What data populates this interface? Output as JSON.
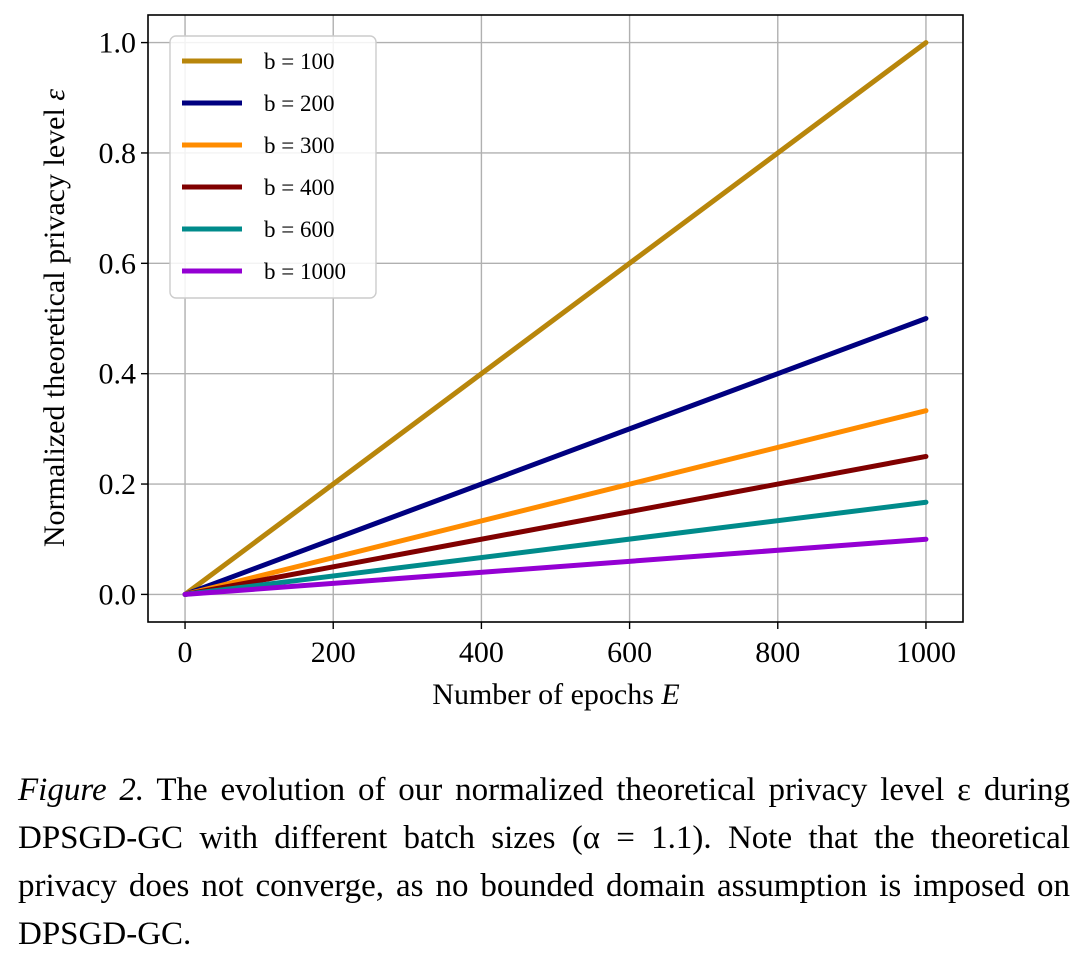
{
  "chart_data": {
    "type": "line",
    "xlabel_text": "Number of epochs ",
    "xlabel_var": "E",
    "ylabel_text": "Normalized theoretical privacy level ",
    "ylabel_var": "ε",
    "xlim": [
      -50,
      1050
    ],
    "ylim": [
      -0.05,
      1.05
    ],
    "xticks": [
      0,
      200,
      400,
      600,
      800,
      1000
    ],
    "xtick_labels": [
      "0",
      "200",
      "400",
      "600",
      "800",
      "1000"
    ],
    "yticks": [
      0.0,
      0.2,
      0.4,
      0.6,
      0.8,
      1.0
    ],
    "ytick_labels": [
      "0.0",
      "0.2",
      "0.4",
      "0.6",
      "0.8",
      "1.0"
    ],
    "grid": true,
    "legend_position": "top-left",
    "x": [
      0,
      1000
    ],
    "series": [
      {
        "name": "b = 100",
        "color": "#B8860B",
        "values": [
          0,
          1.0
        ]
      },
      {
        "name": "b = 200",
        "color": "#000080",
        "values": [
          0,
          0.5
        ]
      },
      {
        "name": "b = 300",
        "color": "#FF8C00",
        "values": [
          0,
          0.333
        ]
      },
      {
        "name": "b = 400",
        "color": "#800000",
        "values": [
          0,
          0.25
        ]
      },
      {
        "name": "b = 600",
        "color": "#008B8B",
        "values": [
          0,
          0.167
        ]
      },
      {
        "name": "b = 1000",
        "color": "#9400D3",
        "values": [
          0,
          0.1
        ]
      }
    ]
  },
  "caption": {
    "label": "Figure 2.",
    "text": " The evolution of our normalized theoretical privacy level ε during DPSGD-GC with different batch sizes (α = 1.1). Note that the theoretical privacy does not converge, as no bounded domain assumption is imposed on DPSGD-GC."
  }
}
